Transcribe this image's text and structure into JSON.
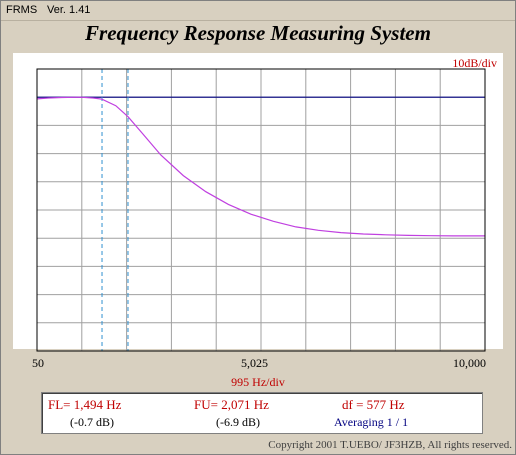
{
  "titlebar": {
    "app": "FRMS",
    "version": "Ver. 1.41"
  },
  "header": {
    "title": "Frequency Response Measuring System"
  },
  "plot": {
    "y_scale": "10dB/div",
    "x_scale": "995 Hz/div",
    "x_ticks": [
      "50",
      "5,025",
      "10,000"
    ]
  },
  "readout": {
    "fl": "FL= 1,494  Hz",
    "fl_db": "(-0.7 dB)",
    "fu": "FU= 2,071  Hz",
    "fu_db": "(-6.9 dB)",
    "df": "df = 577  Hz",
    "averaging": "Averaging  1 / 1"
  },
  "footer": {
    "copyright": "Copyright 2001 T.UEBO/ JF3HZB, All rights reserved."
  },
  "colors": {
    "response": "#c040e0",
    "reference": "#000080",
    "markers": "#3090d0",
    "grid": "#a0a0a0",
    "label_red": "#c00000"
  },
  "chart_data": {
    "type": "line",
    "xlabel": "995 Hz/div",
    "ylabel": "10dB/div",
    "xlim": [
      50,
      10000
    ],
    "ylim": [
      -90,
      10
    ],
    "x_ticks": [
      50,
      5025,
      10000
    ],
    "grid": true,
    "series": [
      {
        "x": [
          50,
          300,
          600,
          1000,
          1300,
          1494,
          1800,
          2071,
          2400,
          2800,
          3300,
          3800,
          4300,
          4800,
          5300,
          5800,
          6300,
          6800,
          7300,
          7800,
          8300,
          8800,
          9300,
          9800,
          10000
        ],
        "y": [
          -0.6,
          -0.3,
          -0.1,
          0,
          -0.3,
          -0.7,
          -3.0,
          -6.9,
          -13.0,
          -20.5,
          -27.8,
          -33.5,
          -38.0,
          -41.5,
          -44.0,
          -46.0,
          -47.2,
          -48.0,
          -48.5,
          -48.8,
          -49.0,
          -49.1,
          -49.2,
          -49.2,
          -49.2
        ]
      }
    ],
    "reference_line_db": 0,
    "markers_hz": [
      1494,
      2071
    ]
  }
}
